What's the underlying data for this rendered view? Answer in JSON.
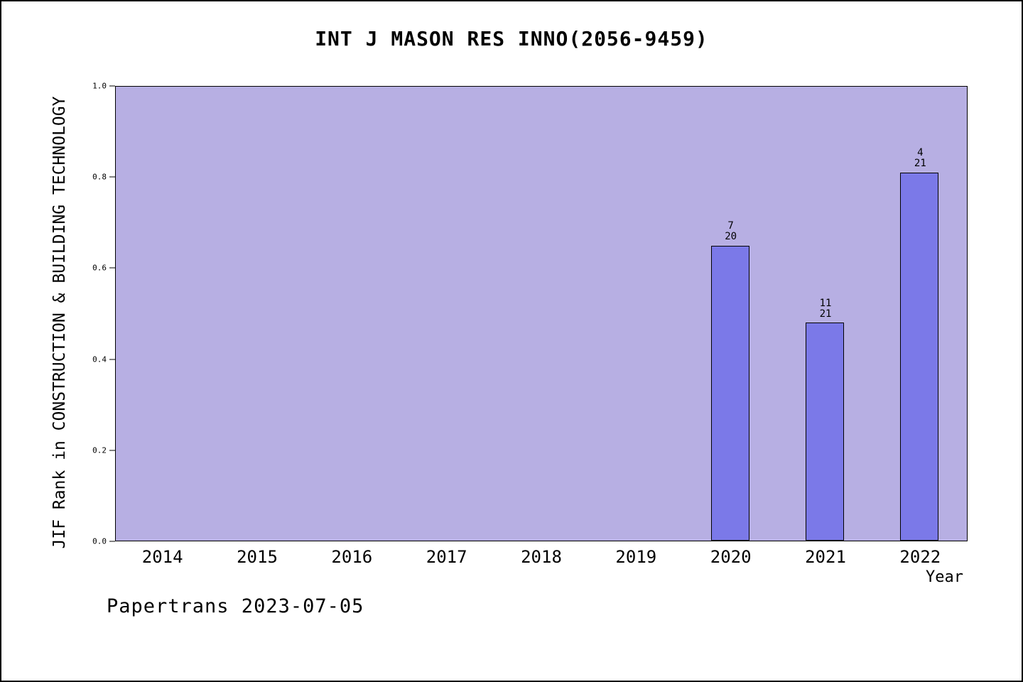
{
  "footer": "Papertrans 2023-07-05",
  "chart_data": {
    "type": "bar",
    "title": "INT J MASON RES INNO(2056-9459)",
    "xlabel": "Year",
    "ylabel": "JIF Rank in CONSTRUCTION & BUILDING TECHNOLOGY",
    "categories": [
      "2014",
      "2015",
      "2016",
      "2017",
      "2018",
      "2019",
      "2020",
      "2021",
      "2022"
    ],
    "values": [
      null,
      null,
      null,
      null,
      null,
      null,
      0.65,
      0.48,
      0.81
    ],
    "bar_labels": [
      null,
      null,
      null,
      null,
      null,
      null,
      {
        "top": "7",
        "bottom": "20"
      },
      {
        "top": "11",
        "bottom": "21"
      },
      {
        "top": "4",
        "bottom": "21"
      }
    ],
    "ylim": [
      0.0,
      1.0
    ],
    "yticks": [
      0.0,
      0.2,
      0.4,
      0.6,
      0.8,
      1.0
    ],
    "grid": false,
    "legend": "none",
    "plot_bg": "#b7afe3",
    "bar_color": "#7b79e8",
    "bar_edge": "#000000"
  }
}
